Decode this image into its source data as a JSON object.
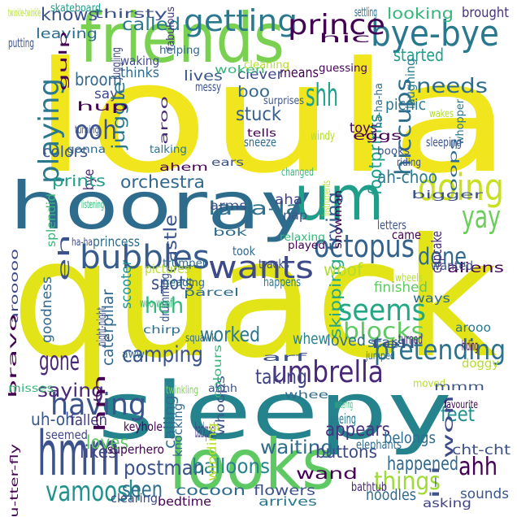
{
  "cloud": {
    "words": [
      {
        "text": "loula",
        "color": "#f1e51d"
      },
      {
        "text": "quack",
        "color": "#e3e418"
      },
      {
        "text": "hooray",
        "color": "#2e6c8e"
      },
      {
        "text": "sleepy",
        "color": "#25838e"
      },
      {
        "text": "looks",
        "color": "#5ec962"
      },
      {
        "text": "friends",
        "color": "#7ad151"
      },
      {
        "text": "um",
        "color": "#1f9e89"
      },
      {
        "text": "hmm",
        "color": "#3b528b"
      },
      {
        "text": "bye-bye",
        "color": "#2a788e"
      },
      {
        "text": "doing",
        "color": "#c8e020"
      },
      {
        "text": "yay",
        "color": "#6ccd5a"
      },
      {
        "text": "wants",
        "color": "#3e4989"
      },
      {
        "text": "bubbles",
        "color": "#375b8d"
      },
      {
        "text": "octopus",
        "color": "#33638d"
      },
      {
        "text": "umbrella",
        "color": "#482878"
      },
      {
        "text": "pretending",
        "color": "#2c718e"
      },
      {
        "text": "having",
        "color": "#3b528b"
      },
      {
        "text": "seems",
        "color": "#22a884"
      },
      {
        "text": "blocks",
        "color": "#5ec962"
      },
      {
        "text": "getting",
        "color": "#2a788e"
      },
      {
        "text": "prince",
        "color": "#440154"
      },
      {
        "text": "needs",
        "color": "#2e6c8e"
      },
      {
        "text": "shh",
        "color": "#1f9e89"
      },
      {
        "text": "ooh",
        "color": "#3b528b"
      },
      {
        "text": "playing",
        "color": "#2a788e"
      },
      {
        "text": "hiccups",
        "color": "#2e6c8e"
      },
      {
        "text": "la-la-la",
        "color": "#2c728e"
      },
      {
        "text": "done",
        "color": "#31688e"
      },
      {
        "text": "things",
        "color": "#a0da39"
      },
      {
        "text": "vamoosh",
        "color": "#21918c"
      },
      {
        "text": "gone",
        "color": "#482878"
      },
      {
        "text": "ahh",
        "color": "#440154"
      },
      {
        "text": "footprints",
        "color": "#1f9e89"
      },
      {
        "text": "trying",
        "color": "#355f8d"
      },
      {
        "text": "skipping",
        "color": "#22a884"
      },
      {
        "text": "camping",
        "color": "#3b528b"
      },
      {
        "text": "orchestra",
        "color": "#31688e"
      },
      {
        "text": "woof",
        "color": "#b5de2b"
      },
      {
        "text": "heh",
        "color": "#35b779"
      },
      {
        "text": "feet",
        "color": "#21918c"
      },
      {
        "text": "saying",
        "color": "#482878"
      },
      {
        "text": "postman",
        "color": "#3b528b"
      },
      {
        "text": "seen",
        "color": "#2d708e"
      },
      {
        "text": "happened",
        "color": "#31688e"
      },
      {
        "text": "taking",
        "color": "#414487"
      },
      {
        "text": "worked",
        "color": "#2a788e"
      },
      {
        "text": "waiting",
        "color": "#2e6c8e"
      },
      {
        "text": "appears",
        "color": "#46327e"
      },
      {
        "text": "balloons",
        "color": "#26828e"
      },
      {
        "text": "uh-oh",
        "color": "#39568c"
      },
      {
        "text": "fallen",
        "color": "#433e85"
      },
      {
        "text": "loves",
        "color": "#5ec962"
      },
      {
        "text": "likes",
        "color": "#414487"
      },
      {
        "text": "knows",
        "color": "#3b528b"
      },
      {
        "text": "called",
        "color": "#2a788e"
      },
      {
        "text": "leaving",
        "color": "#2e6c8e"
      },
      {
        "text": "started",
        "color": "#1f9e89"
      },
      {
        "text": "looking",
        "color": "#35b779"
      },
      {
        "text": "brought",
        "color": "#46327e"
      },
      {
        "text": "broom",
        "color": "#31688e"
      },
      {
        "text": "says",
        "color": "#3e4989"
      },
      {
        "text": "thinks",
        "color": "#2e6c8e"
      },
      {
        "text": "lives",
        "color": "#39568c"
      },
      {
        "text": "means",
        "color": "#440154"
      },
      {
        "text": "clever",
        "color": "#3e4989"
      },
      {
        "text": "boo",
        "color": "#31688e"
      },
      {
        "text": "stuck",
        "color": "#355f8d"
      },
      {
        "text": "juggle",
        "color": "#2a788e"
      },
      {
        "text": "picnic",
        "color": "#2a788e"
      },
      {
        "text": "toys",
        "color": "#440154"
      },
      {
        "text": "colors",
        "color": "#3b528b"
      },
      {
        "text": "bye",
        "color": "#482878"
      },
      {
        "text": "prints",
        "color": "#1f9e89"
      },
      {
        "text": "ah-choo",
        "color": "#2a788e"
      },
      {
        "text": "aha",
        "color": "#414487"
      },
      {
        "text": "nap",
        "color": "#3b528b"
      },
      {
        "text": "castle",
        "color": "#3b528b"
      },
      {
        "text": "scooter",
        "color": "#21918c"
      },
      {
        "text": "caterpillar",
        "color": "#31688e"
      },
      {
        "text": "goodness",
        "color": "#31688e"
      },
      {
        "text": "spots",
        "color": "#3b528b"
      },
      {
        "text": "whew",
        "color": "#26828e"
      },
      {
        "text": "loved",
        "color": "#2e6c8e"
      },
      {
        "text": "stars",
        "color": "#2c728e"
      },
      {
        "text": "turned",
        "color": "#482878"
      },
      {
        "text": "hm",
        "color": "#440154"
      },
      {
        "text": "backpack",
        "color": "#433e85"
      },
      {
        "text": "eh",
        "color": "#3b528b"
      },
      {
        "text": "drumming",
        "color": "#3b528b"
      },
      {
        "text": "princess",
        "color": "#2e6c8e"
      },
      {
        "text": "cupcake",
        "color": "#482878"
      },
      {
        "text": "aliens",
        "color": "#440154"
      },
      {
        "text": "finished",
        "color": "#5ec962"
      },
      {
        "text": "happens",
        "color": "#2a788e"
      },
      {
        "text": "tracks",
        "color": "#3b528b"
      },
      {
        "text": "took",
        "color": "#31688e"
      },
      {
        "text": "wand",
        "color": "#440154"
      },
      {
        "text": "buttons",
        "color": "#3e4989"
      },
      {
        "text": "cocoon",
        "color": "#2e6c8e"
      },
      {
        "text": "flowers",
        "color": "#3b528b"
      },
      {
        "text": "noodles",
        "color": "#2e6c8e"
      },
      {
        "text": "sounds",
        "color": "#39568c"
      },
      {
        "text": "belongs",
        "color": "#2e6c8e"
      },
      {
        "text": "cht-cht",
        "color": "#3b528b"
      },
      {
        "text": "superhero",
        "color": "#440154"
      },
      {
        "text": "bathtub",
        "color": "#482878"
      },
      {
        "text": "asking",
        "color": "#414487"
      },
      {
        "text": "bedtime",
        "color": "#440154"
      },
      {
        "text": "arrives",
        "color": "#2a788e"
      },
      {
        "text": "clearing",
        "color": "#3e4989"
      },
      {
        "text": "seemed",
        "color": "#414487"
      },
      {
        "text": "keyhole",
        "color": "#440154"
      },
      {
        "text": "calling",
        "color": "#2e6c8e"
      },
      {
        "text": "knocking",
        "color": "#31688e"
      },
      {
        "text": "twinkling",
        "color": "#7ad151"
      },
      {
        "text": "ahhh",
        "color": "#3b528b"
      },
      {
        "text": "whee",
        "color": "#2e6c8e"
      },
      {
        "text": "seeing",
        "color": "#2a788e"
      },
      {
        "text": "won",
        "color": "#3e4989"
      },
      {
        "text": "elephants",
        "color": "#2e6c8e"
      },
      {
        "text": "thirsty",
        "color": "#3b528b"
      },
      {
        "text": "skateboard",
        "color": "#1f9e89"
      },
      {
        "text": "fabulous",
        "color": "#46327e"
      },
      {
        "text": "settling",
        "color": "#2e6c8e"
      },
      {
        "text": "hic",
        "color": "#440154"
      },
      {
        "text": "putting",
        "color": "#3b528b"
      },
      {
        "text": "gulp",
        "color": "#440154"
      },
      {
        "text": "juggling",
        "color": "#3e4989"
      },
      {
        "text": "waking",
        "color": "#3e4989"
      },
      {
        "text": "helping",
        "color": "#31688e"
      },
      {
        "text": "woken",
        "color": "#35b779"
      },
      {
        "text": "cleaning",
        "color": "#b5de2b"
      },
      {
        "text": "guessing",
        "color": "#440154"
      },
      {
        "text": "ha-ha-ha",
        "color": "#2e6c8e"
      },
      {
        "text": "laughing",
        "color": "#2a788e"
      },
      {
        "text": "messy",
        "color": "#3b528b"
      },
      {
        "text": "hup",
        "color": "#440154"
      },
      {
        "text": "turning",
        "color": "#3b528b"
      },
      {
        "text": "aroo",
        "color": "#482878"
      },
      {
        "text": "surprises",
        "color": "#39568c"
      },
      {
        "text": "wakes",
        "color": "#b5de2b"
      },
      {
        "text": "tells",
        "color": "#440154"
      },
      {
        "text": "windy",
        "color": "#b5de2b"
      },
      {
        "text": "eggs",
        "color": "#440154"
      },
      {
        "text": "whopper",
        "color": "#2a788e"
      },
      {
        "text": "oops",
        "color": "#2e6c8e"
      },
      {
        "text": "sleeping",
        "color": "#3b528b"
      },
      {
        "text": "gonna",
        "color": "#2e6c8e"
      },
      {
        "text": "talking",
        "color": "#2a788e"
      },
      {
        "text": "sneeze",
        "color": "#2e6c8e"
      },
      {
        "text": "books",
        "color": "#3b528b"
      },
      {
        "text": "riding",
        "color": "#3b528b"
      },
      {
        "text": "ears",
        "color": "#3b528b"
      },
      {
        "text": "ahem",
        "color": "#440154"
      },
      {
        "text": "changed",
        "color": "#35b779"
      },
      {
        "text": "bigger",
        "color": "#3b528b"
      },
      {
        "text": "instruments",
        "color": "#b5de2b"
      },
      {
        "text": "snowman",
        "color": "#440154"
      },
      {
        "text": "splendid",
        "color": "#35b779"
      },
      {
        "text": "listening",
        "color": "#35b779"
      },
      {
        "text": "arms",
        "color": "#3b528b"
      },
      {
        "text": "letters",
        "color": "#3b528b"
      },
      {
        "text": "came",
        "color": "#440154"
      },
      {
        "text": "ha-ha",
        "color": "#3e4989"
      },
      {
        "text": "bok",
        "color": "#2e6c8e"
      },
      {
        "text": "played",
        "color": "#440154"
      },
      {
        "text": "relaxing",
        "color": "#35b779"
      },
      {
        "text": "trumpet",
        "color": "#2e6c8e"
      },
      {
        "text": "arooooo",
        "color": "#3e4989"
      },
      {
        "text": "pictures",
        "color": "#b5de2b"
      },
      {
        "text": "heading",
        "color": "#2e6c8e"
      },
      {
        "text": "wheels",
        "color": "#b5de2b"
      },
      {
        "text": "ways",
        "color": "#2e6c8e"
      },
      {
        "text": "wanted",
        "color": "#3b528b"
      },
      {
        "text": "parcel",
        "color": "#2e6c8e"
      },
      {
        "text": "woo-woof",
        "color": "#35b779"
      },
      {
        "text": "bravo",
        "color": "#440154"
      },
      {
        "text": "night-night",
        "color": "#3b528b"
      },
      {
        "text": "chirp",
        "color": "#2e6c8e"
      },
      {
        "text": "arooo",
        "color": "#2a788e"
      },
      {
        "text": "hiding",
        "color": "#440154"
      },
      {
        "text": "fell",
        "color": "#3b528b"
      },
      {
        "text": "squawk",
        "color": "#2e6c8e"
      },
      {
        "text": "aww",
        "color": "#2e6c8e"
      },
      {
        "text": "arf",
        "color": "#3b528b"
      },
      {
        "text": "jumped",
        "color": "#2e6c8e"
      },
      {
        "text": "doggy",
        "color": "#b5de2b"
      },
      {
        "text": "moved",
        "color": "#b5de2b"
      },
      {
        "text": "mmm",
        "color": "#3b528b"
      },
      {
        "text": "favourite",
        "color": "#440154"
      },
      {
        "text": "misses",
        "color": "#35b779"
      },
      {
        "text": "whoops",
        "color": "#3b528b"
      },
      {
        "text": "colours",
        "color": "#35b779"
      },
      {
        "text": "watering",
        "color": "#35b779"
      },
      {
        "text": "i-i",
        "color": "#3b528b"
      },
      {
        "text": "winding",
        "color": "#b5de2b"
      },
      {
        "text": "bu-tter-fly",
        "color": "#440154"
      },
      {
        "text": "twinkle-twinkle",
        "color": "#b5de2b"
      }
    ]
  }
}
